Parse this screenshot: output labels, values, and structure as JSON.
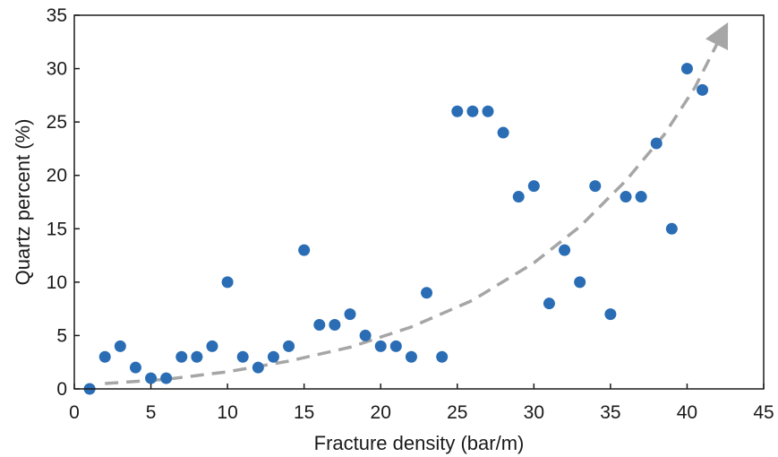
{
  "chart_data": {
    "type": "scatter",
    "title": "",
    "xlabel": "Fracture density (bar/m)",
    "ylabel": "Quartz percent (%)",
    "xlim": [
      0,
      45
    ],
    "ylim": [
      0,
      35
    ],
    "xticks": [
      0,
      5,
      10,
      15,
      20,
      25,
      30,
      35,
      40,
      45
    ],
    "yticks": [
      0,
      5,
      10,
      15,
      20,
      25,
      30,
      35
    ],
    "grid": false,
    "legend": "none",
    "point_color": "#2a6db5",
    "trend_color": "#a6a6a6",
    "points": [
      {
        "x": 1,
        "y": 0
      },
      {
        "x": 2,
        "y": 3
      },
      {
        "x": 3,
        "y": 4
      },
      {
        "x": 4,
        "y": 2
      },
      {
        "x": 5,
        "y": 1
      },
      {
        "x": 6,
        "y": 1
      },
      {
        "x": 7,
        "y": 3
      },
      {
        "x": 8,
        "y": 3
      },
      {
        "x": 9,
        "y": 4
      },
      {
        "x": 10,
        "y": 10
      },
      {
        "x": 11,
        "y": 3
      },
      {
        "x": 12,
        "y": 2
      },
      {
        "x": 13,
        "y": 3
      },
      {
        "x": 14,
        "y": 4
      },
      {
        "x": 15,
        "y": 13
      },
      {
        "x": 16,
        "y": 6
      },
      {
        "x": 17,
        "y": 6
      },
      {
        "x": 18,
        "y": 7
      },
      {
        "x": 19,
        "y": 5
      },
      {
        "x": 20,
        "y": 4
      },
      {
        "x": 21,
        "y": 4
      },
      {
        "x": 22,
        "y": 3
      },
      {
        "x": 23,
        "y": 9
      },
      {
        "x": 24,
        "y": 3
      },
      {
        "x": 25,
        "y": 26
      },
      {
        "x": 26,
        "y": 26
      },
      {
        "x": 27,
        "y": 26
      },
      {
        "x": 28,
        "y": 24
      },
      {
        "x": 29,
        "y": 18
      },
      {
        "x": 30,
        "y": 19
      },
      {
        "x": 31,
        "y": 8
      },
      {
        "x": 32,
        "y": 13
      },
      {
        "x": 33,
        "y": 10
      },
      {
        "x": 34,
        "y": 19
      },
      {
        "x": 35,
        "y": 7
      },
      {
        "x": 36,
        "y": 18
      },
      {
        "x": 37,
        "y": 18
      },
      {
        "x": 38,
        "y": 23
      },
      {
        "x": 39,
        "y": 15
      },
      {
        "x": 40,
        "y": 30
      },
      {
        "x": 41,
        "y": 28
      }
    ],
    "trend_line": {
      "style": "dashed-arrow",
      "points": [
        {
          "x": 2,
          "y": 0.5
        },
        {
          "x": 6,
          "y": 0.9
        },
        {
          "x": 10,
          "y": 1.6
        },
        {
          "x": 14,
          "y": 2.6
        },
        {
          "x": 18,
          "y": 3.9
        },
        {
          "x": 22,
          "y": 5.8
        },
        {
          "x": 26,
          "y": 8.3
        },
        {
          "x": 30,
          "y": 11.8
        },
        {
          "x": 33,
          "y": 15.2
        },
        {
          "x": 36,
          "y": 19.5
        },
        {
          "x": 38.5,
          "y": 23.8
        },
        {
          "x": 40.5,
          "y": 28.2
        },
        {
          "x": 42.3,
          "y": 33.3
        }
      ]
    }
  }
}
